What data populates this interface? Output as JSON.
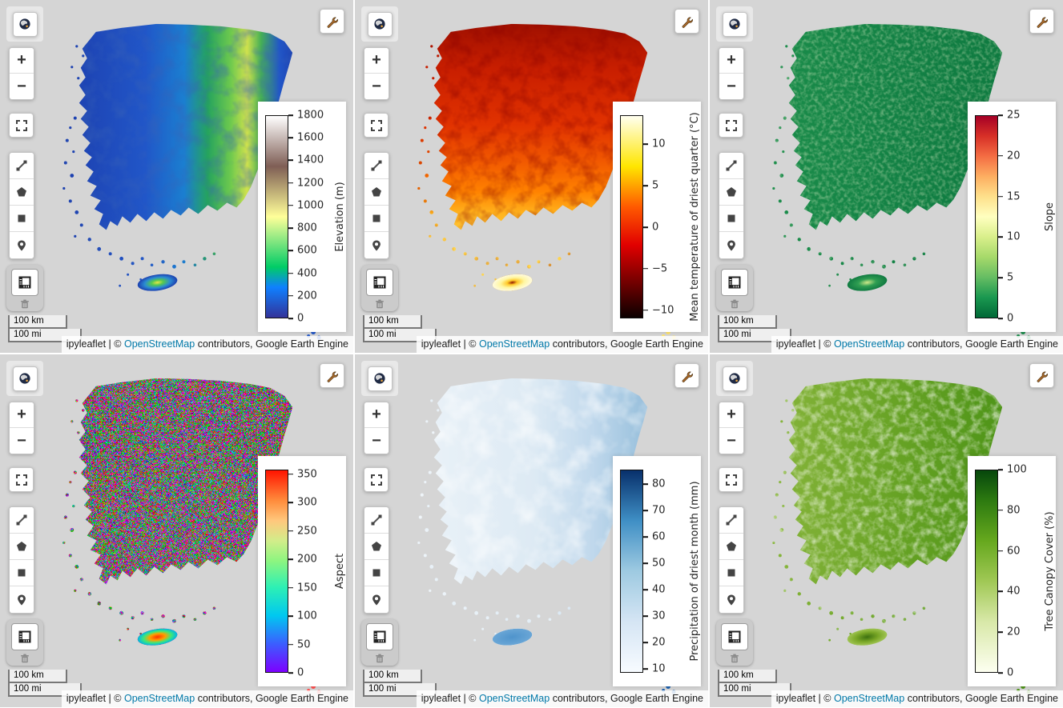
{
  "attribution": {
    "prefix": "ipyleaflet | © ",
    "link": "OpenStreetMap",
    "suffix": " contributors, Google Earth Engine",
    "link_color": "#0078a8"
  },
  "controls": {
    "zoom_in": "+",
    "zoom_out": "−",
    "scale_km": "100 km",
    "scale_mi": "100 mi",
    "icons": [
      "globe-icon",
      "zoom-in",
      "zoom-out",
      "fullscreen-icon",
      "draw-polyline-icon",
      "draw-polygon-icon",
      "draw-rectangle-icon",
      "draw-marker-icon",
      "ruler-icon",
      "trash-icon",
      "wrench-icon"
    ]
  },
  "panels": [
    {
      "id": "elevation",
      "colorbar": {
        "label": "Elevation (m)",
        "vmin": 0,
        "vmax": 1800,
        "ticks": [
          {
            "v": 0,
            "t": "0"
          },
          {
            "v": 200,
            "t": "200"
          },
          {
            "v": 400,
            "t": "400"
          },
          {
            "v": 600,
            "t": "600"
          },
          {
            "v": 800,
            "t": "800"
          },
          {
            "v": 1000,
            "t": "1000"
          },
          {
            "v": 1200,
            "t": "1200"
          },
          {
            "v": 1400,
            "t": "1400"
          },
          {
            "v": 1600,
            "t": "1600"
          },
          {
            "v": 1800,
            "t": "1800"
          }
        ],
        "gradient": [
          [
            0,
            "#333399"
          ],
          [
            0.15,
            "#0f80ff"
          ],
          [
            0.25,
            "#00cc66"
          ],
          [
            0.5,
            "#ffff99"
          ],
          [
            0.75,
            "#7f5e55"
          ],
          [
            1,
            "#ffffff"
          ]
        ],
        "palette": "terrain"
      },
      "map": {
        "direction": "x",
        "stops": [
          [
            0,
            "#1d3fae"
          ],
          [
            0.35,
            "#2156c8"
          ],
          [
            0.52,
            "#1b7fd0"
          ],
          [
            0.62,
            "#25a35e"
          ],
          [
            0.72,
            "#6ec94e"
          ],
          [
            0.79,
            "#cfe14e"
          ],
          [
            0.85,
            "#46b055"
          ],
          [
            0.93,
            "#2156c8"
          ],
          [
            1,
            "#1d3fae"
          ]
        ],
        "noise": {
          "freq": 0.05,
          "oct": 3,
          "tint": "#0a1f7a",
          "amp": 0.5,
          "colorful": false
        },
        "jeju": [
          [
            0,
            "#e8e44a"
          ],
          [
            0.3,
            "#54c94f"
          ],
          [
            0.65,
            "#2a8ad4"
          ],
          [
            1,
            "#1d3fae"
          ]
        ],
        "accent": "#2156c8"
      }
    },
    {
      "id": "temperature",
      "colorbar": {
        "label": "Mean temperature of driest quarter (°C)",
        "vmin": -11,
        "vmax": 13.5,
        "ticks": [
          {
            "v": -10,
            "t": "−10"
          },
          {
            "v": -5,
            "t": "−5"
          },
          {
            "v": 0,
            "t": "0"
          },
          {
            "v": 5,
            "t": "5"
          },
          {
            "v": 10,
            "t": "10"
          }
        ],
        "gradient": [
          [
            0,
            "#0b0000"
          ],
          [
            0.36,
            "#e10000"
          ],
          [
            0.55,
            "#ff5a00"
          ],
          [
            0.75,
            "#ffe600"
          ],
          [
            1,
            "#fffff0"
          ]
        ],
        "palette": "hot"
      },
      "map": {
        "direction": "y",
        "stops": [
          [
            0,
            "#a01000"
          ],
          [
            0.2,
            "#c81e00"
          ],
          [
            0.45,
            "#e13200"
          ],
          [
            0.62,
            "#f25a00"
          ],
          [
            0.75,
            "#ff8200"
          ],
          [
            0.85,
            "#ffb41e"
          ],
          [
            1,
            "#ffd54e"
          ]
        ],
        "noise": {
          "freq": 0.06,
          "oct": 3,
          "tint": "#400000",
          "amp": 0.45,
          "colorful": false
        },
        "jeju": [
          [
            0,
            "#901400"
          ],
          [
            0.25,
            "#ffc828"
          ],
          [
            0.6,
            "#fff6a0"
          ],
          [
            1,
            "#fffbe0"
          ]
        ],
        "accent": "#ffe46e"
      }
    },
    {
      "id": "slope",
      "colorbar": {
        "label": "Slope",
        "vmin": 0,
        "vmax": 25,
        "ticks": [
          {
            "v": 0,
            "t": "0"
          },
          {
            "v": 5,
            "t": "5"
          },
          {
            "v": 10,
            "t": "10"
          },
          {
            "v": 15,
            "t": "15"
          },
          {
            "v": 20,
            "t": "20"
          },
          {
            "v": 25,
            "t": "25"
          }
        ],
        "gradient": [
          [
            0,
            "#006837"
          ],
          [
            0.1,
            "#1a9850"
          ],
          [
            0.2,
            "#66bd63"
          ],
          [
            0.3,
            "#a6d96a"
          ],
          [
            0.4,
            "#d9ef8b"
          ],
          [
            0.5,
            "#ffffbf"
          ],
          [
            0.6,
            "#fee08b"
          ],
          [
            0.7,
            "#fdae61"
          ],
          [
            0.8,
            "#f46d43"
          ],
          [
            0.9,
            "#d73027"
          ],
          [
            1,
            "#a50026"
          ]
        ],
        "palette": "RdYlGn_r"
      },
      "map": {
        "direction": "x",
        "stops": [
          [
            0,
            "#1a8c4a"
          ],
          [
            0.6,
            "#128044"
          ],
          [
            1,
            "#0e7a40"
          ]
        ],
        "noise": {
          "freq": 0.22,
          "oct": 2,
          "tint": "#d8eca0",
          "amp": 0.4,
          "colorful": false
        },
        "jeju": [
          [
            0,
            "#cfe88a"
          ],
          [
            0.45,
            "#2f9e52"
          ],
          [
            1,
            "#117a42"
          ]
        ],
        "accent": "#1a8c4a"
      }
    },
    {
      "id": "aspect",
      "colorbar": {
        "label": "Aspect",
        "vmin": 0,
        "vmax": 358,
        "ticks": [
          {
            "v": 0,
            "t": "0"
          },
          {
            "v": 50,
            "t": "50"
          },
          {
            "v": 100,
            "t": "100"
          },
          {
            "v": 150,
            "t": "150"
          },
          {
            "v": 200,
            "t": "200"
          },
          {
            "v": 250,
            "t": "250"
          },
          {
            "v": 300,
            "t": "300"
          },
          {
            "v": 350,
            "t": "350"
          }
        ],
        "gradient": [
          [
            0,
            "#7d00ff"
          ],
          [
            0.14,
            "#3b5eff"
          ],
          [
            0.28,
            "#00c8f0"
          ],
          [
            0.42,
            "#2df0b4"
          ],
          [
            0.55,
            "#8cf580"
          ],
          [
            0.65,
            "#d2ed8a"
          ],
          [
            0.75,
            "#ffc87d"
          ],
          [
            0.85,
            "#ff8c3c"
          ],
          [
            1,
            "#ff1400"
          ]
        ],
        "palette": "rainbow"
      },
      "map": {
        "direction": "x",
        "stops": [
          [
            0,
            "#8c8c8c"
          ],
          [
            1,
            "#8c8c8c"
          ]
        ],
        "noise": {
          "freq": 0.5,
          "oct": 2,
          "tint": "#ffffff",
          "amp": 1,
          "colorful": true
        },
        "jeju": [
          [
            0,
            "#ff3200"
          ],
          [
            0.4,
            "#ffa000"
          ],
          [
            0.7,
            "#3ce87a"
          ],
          [
            1,
            "#00b4e8"
          ]
        ],
        "accent": "#ff5050"
      }
    },
    {
      "id": "precipitation",
      "colorbar": {
        "label": "Precipitation of driest month (mm)",
        "vmin": 8.5,
        "vmax": 85.5,
        "ticks": [
          {
            "v": 10,
            "t": "10"
          },
          {
            "v": 20,
            "t": "20"
          },
          {
            "v": 30,
            "t": "30"
          },
          {
            "v": 40,
            "t": "40"
          },
          {
            "v": 50,
            "t": "50"
          },
          {
            "v": 60,
            "t": "60"
          },
          {
            "v": 70,
            "t": "70"
          },
          {
            "v": 80,
            "t": "80"
          }
        ],
        "gradient": [
          [
            0,
            "#f7fbff"
          ],
          [
            0.25,
            "#d5e5f4"
          ],
          [
            0.5,
            "#9ecae1"
          ],
          [
            0.75,
            "#3f8fc5"
          ],
          [
            1,
            "#08306b"
          ]
        ],
        "palette": "Blues"
      },
      "map": {
        "direction": "x",
        "stops": [
          [
            0,
            "#eaf2f8"
          ],
          [
            0.5,
            "#ddeaf4"
          ],
          [
            0.75,
            "#c0d8ec"
          ],
          [
            0.92,
            "#a2c6e0"
          ],
          [
            1,
            "#94bcda"
          ]
        ],
        "noise": {
          "freq": 0.035,
          "oct": 3,
          "tint": "#ffffff",
          "amp": 0.6,
          "colorful": false
        },
        "jeju": [
          [
            0,
            "#4f94cc"
          ],
          [
            1,
            "#6aa6d6"
          ]
        ],
        "accent": "#1a5fae"
      }
    },
    {
      "id": "tree-canopy",
      "colorbar": {
        "label": "Tree Canopy Cover (%)",
        "vmin": 0,
        "vmax": 100,
        "ticks": [
          {
            "v": 0,
            "t": "0"
          },
          {
            "v": 20,
            "t": "20"
          },
          {
            "v": 40,
            "t": "40"
          },
          {
            "v": 60,
            "t": "60"
          },
          {
            "v": 80,
            "t": "80"
          },
          {
            "v": 100,
            "t": "100"
          }
        ],
        "gradient": [
          [
            0,
            "#fdfff0"
          ],
          [
            0.25,
            "#d8e8a8"
          ],
          [
            0.45,
            "#a0c855"
          ],
          [
            0.65,
            "#66a81e"
          ],
          [
            0.85,
            "#2d7a10"
          ],
          [
            1,
            "#06470c"
          ]
        ],
        "palette": "Greens"
      },
      "map": {
        "direction": "x",
        "stops": [
          [
            0,
            "#86b43a"
          ],
          [
            0.55,
            "#66a224"
          ],
          [
            1,
            "#4e9418"
          ]
        ],
        "noise": {
          "freq": 0.11,
          "oct": 3,
          "tint": "#f8fcec",
          "amp": 0.6,
          "colorful": false
        },
        "jeju": [
          [
            0,
            "#3c7010"
          ],
          [
            0.55,
            "#78a626"
          ],
          [
            1,
            "#a0c452"
          ]
        ],
        "accent": "#4e9418"
      }
    }
  ]
}
